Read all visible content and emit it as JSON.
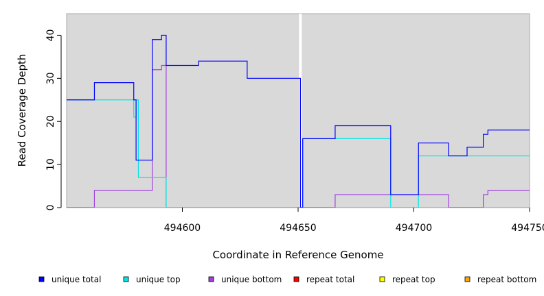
{
  "chart_data": {
    "type": "line",
    "title": "",
    "xlabel": "Coordinate in Reference Genome",
    "ylabel": "Read Coverage Depth",
    "xlim": [
      494550,
      494750
    ],
    "ylim": [
      0,
      45
    ],
    "x_ticks": [
      494600,
      494650,
      494700,
      494750
    ],
    "y_ticks": [
      0,
      10,
      20,
      30,
      40
    ],
    "x_tick_labels": [
      "494600",
      "494650",
      "494700",
      "494750"
    ],
    "y_tick_labels": [
      "0",
      "10",
      "20",
      "30",
      "40"
    ],
    "background": "#d9d9d9",
    "grid": false,
    "legend_position": "bottom",
    "gap_marker_x": 494651,
    "series": [
      {
        "name": "unique total",
        "color": "#0000ff",
        "x": [
          494550,
          494562,
          494562,
          494579,
          494579,
          494580,
          494580,
          494587,
          494587,
          494591,
          494591,
          494593,
          494593,
          494607,
          494607,
          494628,
          494628,
          494651,
          494651,
          494652,
          494652,
          494666,
          494666,
          494690,
          494690,
          494702,
          494702,
          494715,
          494715,
          494723,
          494723,
          494730,
          494730,
          494732,
          494732,
          494750
        ],
        "y": [
          25,
          25,
          29,
          29,
          25,
          25,
          11,
          11,
          39,
          39,
          40,
          40,
          33,
          33,
          34,
          34,
          30,
          30,
          0,
          0,
          16,
          16,
          19,
          19,
          3,
          3,
          15,
          15,
          12,
          12,
          14,
          14,
          17,
          17,
          18,
          18
        ]
      },
      {
        "name": "unique top",
        "color": "#00e5e5",
        "x": [
          494550,
          494579,
          494579,
          494580,
          494580,
          494581,
          494581,
          494593,
          494593,
          494651,
          494651,
          494652,
          494652,
          494690,
          494690,
          494702,
          494702,
          494750
        ],
        "y": [
          25,
          25,
          21,
          21,
          25,
          25,
          7,
          7,
          0,
          0,
          0,
          0,
          16,
          16,
          0,
          0,
          12,
          12
        ]
      },
      {
        "name": "unique bottom",
        "color": "#a040e0",
        "x": [
          494550,
          494562,
          494562,
          494587,
          494587,
          494591,
          494591,
          494593,
          494593,
          494651,
          494651,
          494652,
          494652,
          494666,
          494666,
          494715,
          494715,
          494730,
          494730,
          494732,
          494732,
          494750
        ],
        "y": [
          0,
          0,
          4,
          4,
          32,
          32,
          33,
          33,
          0,
          0,
          0,
          0,
          0,
          0,
          3,
          3,
          0,
          0,
          3,
          3,
          4,
          4
        ]
      },
      {
        "name": "repeat total",
        "color": "#ff0000",
        "x": [
          494550,
          494750
        ],
        "y": [
          0,
          0
        ]
      },
      {
        "name": "repeat top",
        "color": "#ffff00",
        "x": [
          494550,
          494750
        ],
        "y": [
          0,
          0
        ]
      },
      {
        "name": "repeat bottom",
        "color": "#ffa500",
        "x": [
          494550,
          494750
        ],
        "y": [
          0,
          0
        ]
      }
    ]
  }
}
